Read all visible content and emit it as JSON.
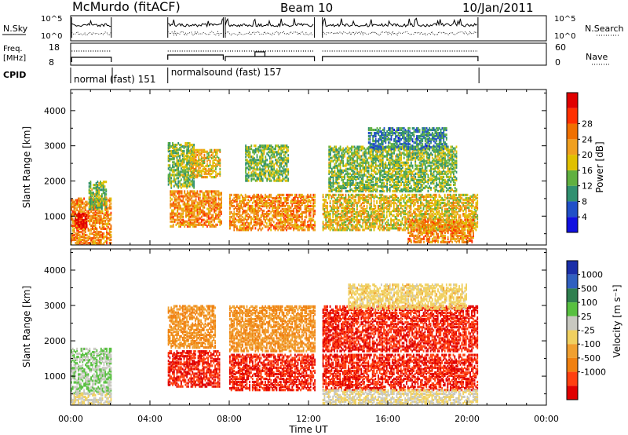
{
  "header": {
    "station": "McMurdo (fitACF)",
    "beam": "Beam 10",
    "date": "10/Jan/2011"
  },
  "status_panels": {
    "nsky_label": "N.Sky",
    "nsky_ticks": [
      "10^5",
      "10^0"
    ],
    "nsearch_label": "N.Search",
    "nsearch_ticks": [
      "10^5",
      "10^0"
    ],
    "freq_label": "Freq.",
    "freq_unit": "[MHz]",
    "freq_ticks": [
      "18",
      "8"
    ],
    "nave_label": "Nave",
    "nave_ticks": [
      "60",
      "0"
    ],
    "cpid_label": "CPID",
    "cpid_segments": [
      {
        "label": "normal (fast) 151",
        "start_h": 0.0,
        "end_h": 2.1
      },
      {
        "label": "normalsound (fast) 157",
        "start_h": 4.9,
        "end_h": 20.6
      }
    ]
  },
  "axes": {
    "xlabel": "Time UT",
    "x_tick_labels": [
      "00:00",
      "04:00",
      "08:00",
      "12:00",
      "16:00",
      "20:00",
      "00:00"
    ],
    "ylabel": "Slant Range [km]",
    "y_tick_labels": [
      "1000",
      "2000",
      "3000",
      "4000"
    ]
  },
  "power_colorbar": {
    "title": "Power [dB]",
    "labels": [
      "4",
      "8",
      "12",
      "16",
      "20",
      "24",
      "28"
    ],
    "colors": [
      "#1010e0",
      "#2050c8",
      "#309070",
      "#60b040",
      "#e0c000",
      "#f0a020",
      "#f07000",
      "#ff3000",
      "#e00000"
    ]
  },
  "velocity_colorbar": {
    "title": "Velocity [m s⁻¹]",
    "labels": [
      "1000",
      "500",
      "100",
      "25",
      "-25",
      "-100",
      "-500",
      "-1000"
    ],
    "colors": [
      "#1a2ea8",
      "#3060c0",
      "#2f7f4f",
      "#58c040",
      "#c8c8c0",
      "#f0d060",
      "#f0a030",
      "#f08010",
      "#ff4010",
      "#e00000"
    ]
  },
  "chart_data": [
    {
      "type": "heatmap",
      "title": "Power",
      "x_range_hours": [
        0,
        24
      ],
      "ylim": [
        180,
        4600
      ],
      "ylabel": "Slant Range [km]",
      "xlabel": "Time UT",
      "z_label": "Power [dB]",
      "z_range": [
        0,
        30
      ],
      "regions": [
        {
          "t0": 0.0,
          "t1": 2.0,
          "r0": 180,
          "r1": 1500,
          "value": 20
        },
        {
          "t0": 0.2,
          "t1": 0.8,
          "r0": 650,
          "r1": 1100,
          "value": 28
        },
        {
          "t0": 0.9,
          "t1": 1.8,
          "r0": 1200,
          "r1": 2000,
          "value": 12
        },
        {
          "t0": 4.9,
          "t1": 6.2,
          "r0": 1800,
          "r1": 3100,
          "value": 12
        },
        {
          "t0": 5.0,
          "t1": 7.6,
          "r0": 700,
          "r1": 1700,
          "value": 20
        },
        {
          "t0": 6.0,
          "t1": 7.5,
          "r0": 2100,
          "r1": 2900,
          "value": 16
        },
        {
          "t0": 8.0,
          "t1": 12.3,
          "r0": 600,
          "r1": 1600,
          "value": 20
        },
        {
          "t0": 8.8,
          "t1": 11.0,
          "r0": 2000,
          "r1": 3000,
          "value": 12
        },
        {
          "t0": 12.7,
          "t1": 20.5,
          "r0": 600,
          "r1": 1600,
          "value": 16
        },
        {
          "t0": 13.0,
          "t1": 19.5,
          "r0": 1700,
          "r1": 3000,
          "value": 12
        },
        {
          "t0": 15.0,
          "t1": 19.0,
          "r0": 2900,
          "r1": 3500,
          "value": 8
        },
        {
          "t0": 17.0,
          "t1": 20.3,
          "r0": 250,
          "r1": 900,
          "value": 20
        }
      ]
    },
    {
      "type": "heatmap",
      "title": "Velocity",
      "x_range_hours": [
        0,
        24
      ],
      "ylim": [
        180,
        4600
      ],
      "ylabel": "Slant Range [km]",
      "xlabel": "Time UT",
      "z_label": "Velocity [m s⁻¹]",
      "z_range": [
        -1000,
        1000
      ],
      "regions": [
        {
          "t0": 0.0,
          "t1": 2.0,
          "r0": 500,
          "r1": 1800,
          "value": 100
        },
        {
          "t0": 0.0,
          "t1": 2.0,
          "r0": 180,
          "r1": 500,
          "value": 25
        },
        {
          "t0": 4.9,
          "t1": 7.5,
          "r0": 700,
          "r1": 1700,
          "value": -500
        },
        {
          "t0": 4.9,
          "t1": 7.3,
          "r0": 1800,
          "r1": 3000,
          "value": -100
        },
        {
          "t0": 8.0,
          "t1": 12.3,
          "r0": 600,
          "r1": 1600,
          "value": -500
        },
        {
          "t0": 8.0,
          "t1": 12.3,
          "r0": 1700,
          "r1": 3000,
          "value": -100
        },
        {
          "t0": 12.7,
          "t1": 20.5,
          "r0": 600,
          "r1": 1600,
          "value": -500
        },
        {
          "t0": 12.7,
          "t1": 20.5,
          "r0": 1700,
          "r1": 3000,
          "value": -500
        },
        {
          "t0": 14.0,
          "t1": 20.0,
          "r0": 2900,
          "r1": 3600,
          "value": 0
        },
        {
          "t0": 12.7,
          "t1": 20.5,
          "r0": 180,
          "r1": 600,
          "value": 25
        }
      ]
    }
  ]
}
